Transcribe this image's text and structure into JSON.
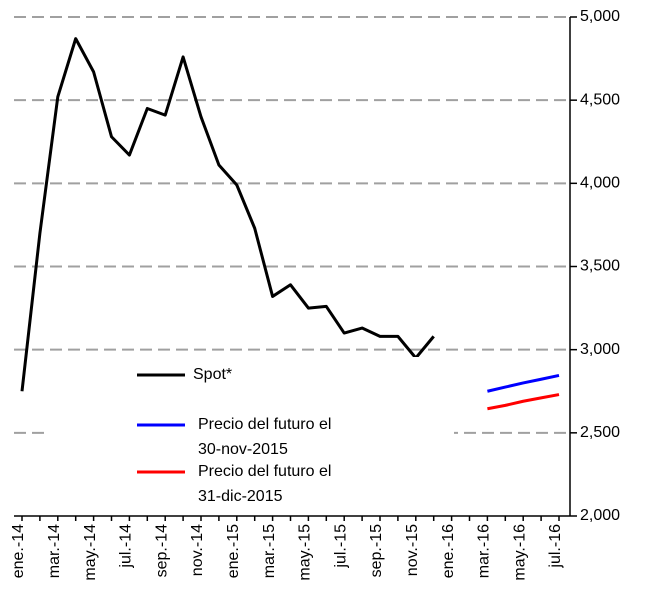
{
  "chart_data": {
    "type": "line",
    "categories": [
      "ene.-14",
      null,
      "mar.-14",
      null,
      "may.-14",
      null,
      "jul.-14",
      null,
      "sep.-14",
      null,
      "nov.-14",
      null,
      "ene.-15",
      null,
      "mar.-15",
      null,
      "may.-15",
      null,
      "jul.-15",
      null,
      "sep.-15",
      null,
      "nov.-15",
      null,
      "ene.-16",
      null,
      "mar.-16",
      null,
      "may.-16",
      null,
      "jul.-16"
    ],
    "series": [
      {
        "name": "Spot*",
        "color": "#000000",
        "values": [
          2750,
          3700,
          4520,
          4870,
          4670,
          4280,
          4170,
          4450,
          4410,
          4760,
          4400,
          4110,
          3990,
          3730,
          3320,
          3390,
          3250,
          3260,
          3100,
          3130,
          3080,
          3080,
          2950,
          3080,
          null,
          null,
          null,
          null,
          null,
          null,
          null
        ]
      },
      {
        "name": "Precio del futuro el 30-nov-2015",
        "color": "#0000ff",
        "values": [
          null,
          null,
          null,
          null,
          null,
          null,
          null,
          null,
          null,
          null,
          null,
          null,
          null,
          null,
          null,
          null,
          null,
          null,
          null,
          null,
          null,
          null,
          null,
          null,
          null,
          null,
          2750,
          2775,
          2800,
          2822,
          2845
        ]
      },
      {
        "name": "Precio del futuro el 31-dic-2015",
        "color": "#ff0000",
        "values": [
          null,
          null,
          null,
          null,
          null,
          null,
          null,
          null,
          null,
          null,
          null,
          null,
          null,
          null,
          null,
          null,
          null,
          null,
          null,
          null,
          null,
          null,
          null,
          null,
          null,
          null,
          2645,
          2665,
          2690,
          2710,
          2730
        ]
      }
    ],
    "ylim": [
      2000,
      5000
    ],
    "yticks": [
      {
        "value": 2000,
        "label": "2,000"
      },
      {
        "value": 2500,
        "label": "2,500"
      },
      {
        "value": 3000,
        "label": "3,000"
      },
      {
        "value": 3500,
        "label": "3,500"
      },
      {
        "value": 4000,
        "label": "4,000"
      },
      {
        "value": 4500,
        "label": "4,500"
      },
      {
        "value": 5000,
        "label": "5,000"
      }
    ],
    "grid": true,
    "legend": "lower center"
  }
}
